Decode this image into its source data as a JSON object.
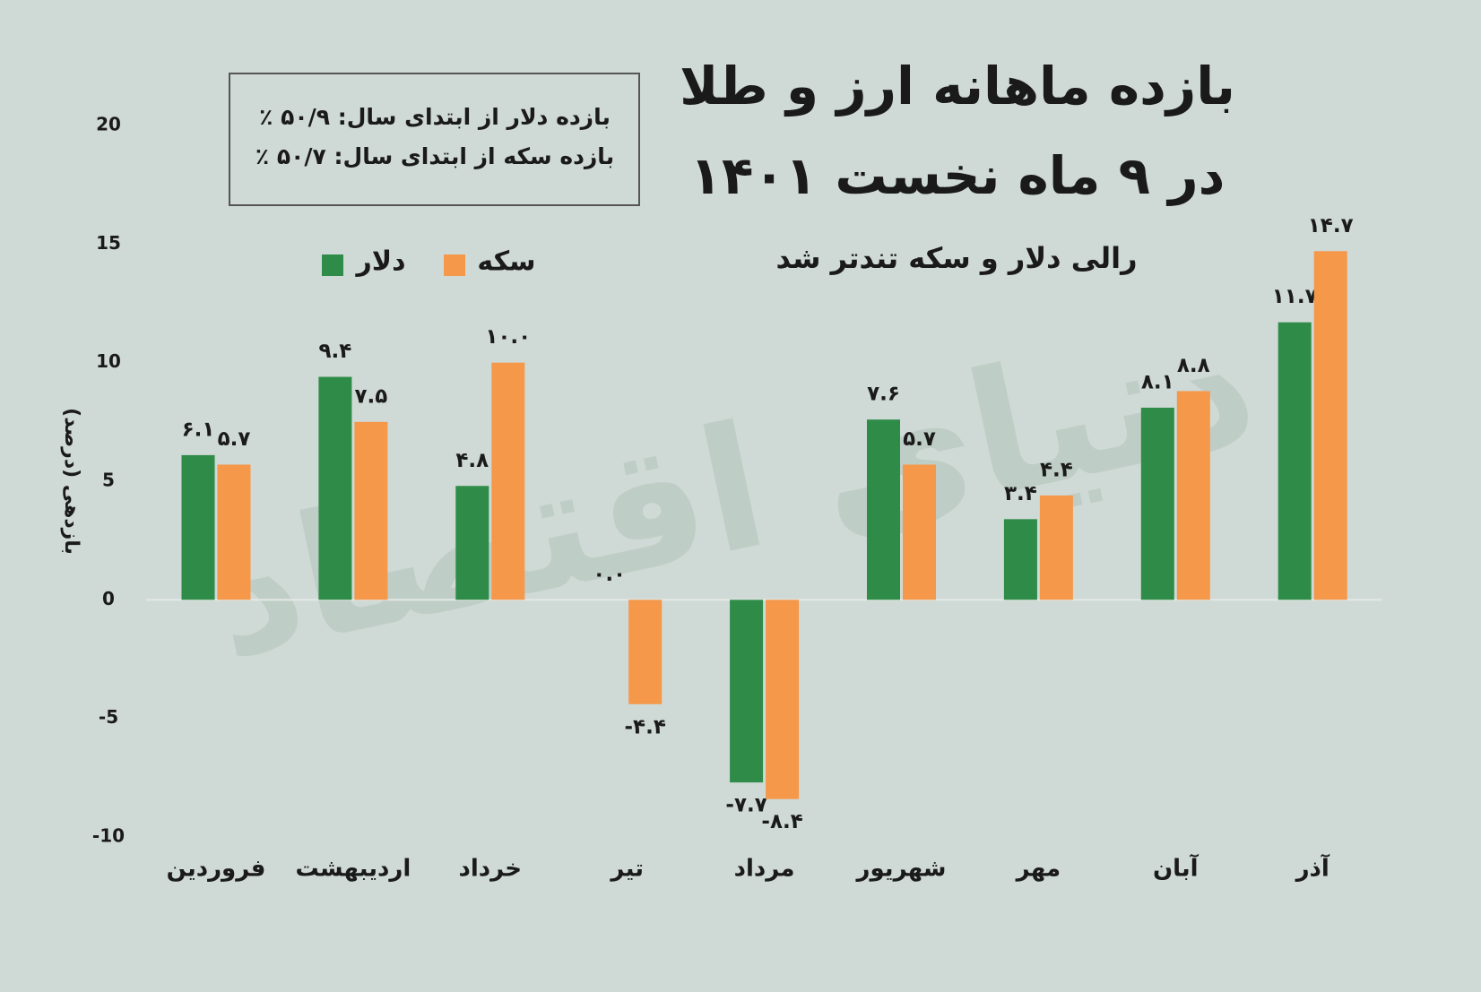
{
  "chart_data": {
    "type": "bar",
    "title_lines": [
      "بازده ماهانه ارز و طلا",
      "در ۹ ماه نخست ۱۴۰۱"
    ],
    "subtitle": "رالی دلار و سکه تندتر شد",
    "annotations": [
      "بازده دلار از ابتدای سال: ۵۰/۹ ٪",
      "بازده سکه از ابتدای سال: ۵۰/۷ ٪"
    ],
    "watermark": "دنیای اقتصاد",
    "y_label": "بازدهی (درصد)",
    "categories": [
      "فروردین",
      "اردیبهشت",
      "خرداد",
      "تیر",
      "مرداد",
      "شهریور",
      "مهر",
      "آبان",
      "آذر"
    ],
    "series": [
      {
        "name": "دلار",
        "color": "#2f8c48",
        "values": [
          6.1,
          9.4,
          4.8,
          0.0,
          -7.7,
          7.6,
          3.4,
          8.1,
          11.7
        ],
        "value_labels": [
          "۶.۱",
          "۹.۴",
          "۴.۸",
          "۰.۰",
          "-۷.۷",
          "۷.۶",
          "۳.۴",
          "۸.۱",
          "۱۱.۷"
        ]
      },
      {
        "name": "سکه",
        "color": "#f5984a",
        "values": [
          5.7,
          7.5,
          10.0,
          -4.4,
          -8.4,
          5.7,
          4.4,
          8.8,
          14.7
        ],
        "value_labels": [
          "۵.۷",
          "۷.۵",
          "۱۰.۰",
          "-۴.۴",
          "-۸.۴",
          "۵.۷",
          "۴.۴",
          "۸.۸",
          "۱۴.۷"
        ]
      }
    ],
    "ylim": [
      -10,
      20
    ],
    "yticks": [
      -10,
      -5,
      0,
      5,
      10,
      15,
      20
    ]
  }
}
